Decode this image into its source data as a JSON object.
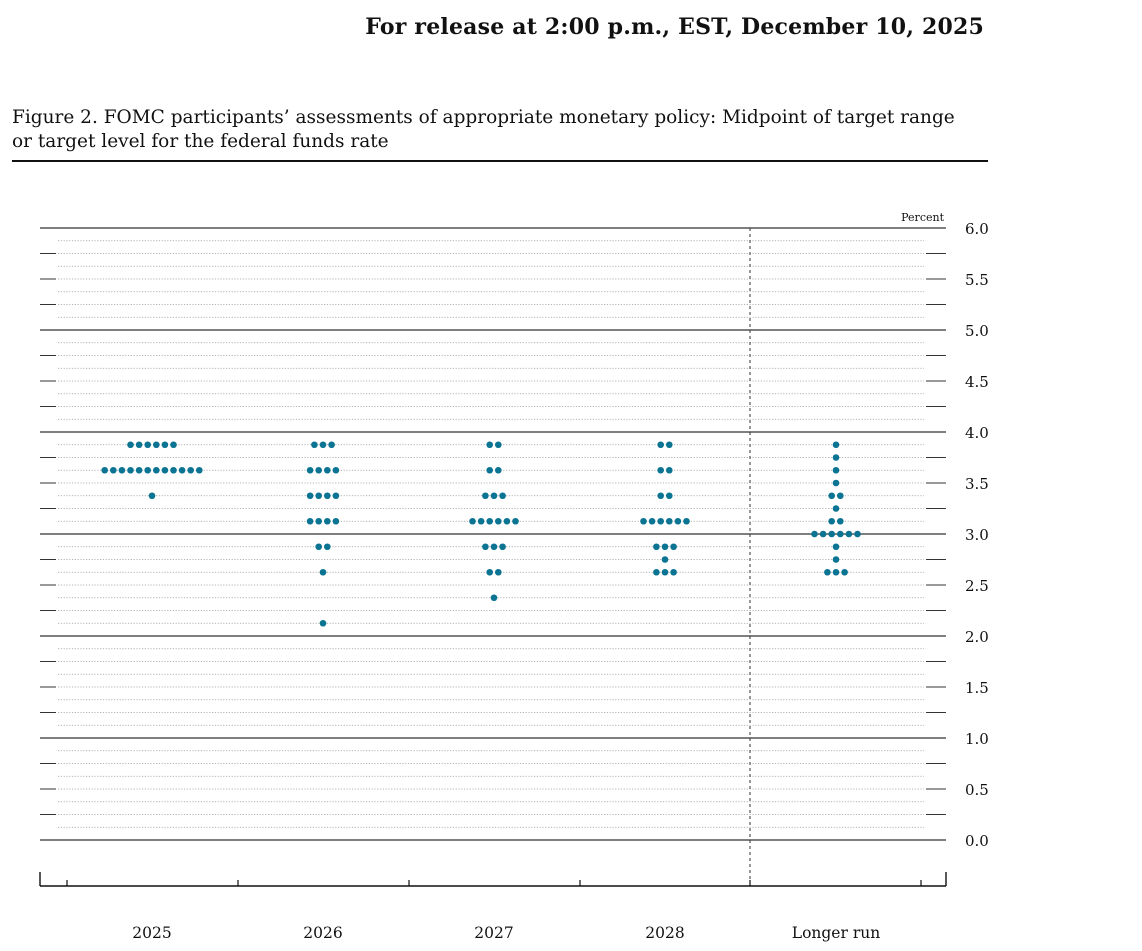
{
  "header": {
    "release_text": "For release at 2:00 p.m., EST, December 10, 2025"
  },
  "figure": {
    "title_line1": "Figure 2. FOMC participants’ assessments of appropriate monetary policy: Midpoint of target range",
    "title_line2": "or target level for the federal funds rate"
  },
  "colors": {
    "dot": "#0a7492",
    "axis": "#111111"
  },
  "chart_data": {
    "type": "scatter",
    "subtype": "dot-plot",
    "title": "",
    "xlabel": "",
    "ylabel": "Percent",
    "ylim": [
      0.0,
      6.0
    ],
    "yticks": [
      "6.0",
      "5.5",
      "5.0",
      "4.5",
      "4.0",
      "3.5",
      "3.0",
      "2.5",
      "2.0",
      "1.5",
      "1.0",
      "0.5",
      "0.0"
    ],
    "grid": true,
    "categories": [
      "2025",
      "2026",
      "2027",
      "2028",
      "Longer run"
    ],
    "dots": [
      {
        "category": "2025",
        "points": [
          {
            "rate": 3.875,
            "count": 6
          },
          {
            "rate": 3.625,
            "count": 12
          },
          {
            "rate": 3.375,
            "count": 1
          }
        ]
      },
      {
        "category": "2026",
        "points": [
          {
            "rate": 3.875,
            "count": 3
          },
          {
            "rate": 3.625,
            "count": 4
          },
          {
            "rate": 3.375,
            "count": 4
          },
          {
            "rate": 3.125,
            "count": 4
          },
          {
            "rate": 2.875,
            "count": 2
          },
          {
            "rate": 2.625,
            "count": 1
          },
          {
            "rate": 2.125,
            "count": 1
          }
        ]
      },
      {
        "category": "2027",
        "points": [
          {
            "rate": 3.875,
            "count": 2
          },
          {
            "rate": 3.625,
            "count": 2
          },
          {
            "rate": 3.375,
            "count": 3
          },
          {
            "rate": 3.125,
            "count": 6
          },
          {
            "rate": 2.875,
            "count": 3
          },
          {
            "rate": 2.625,
            "count": 2
          },
          {
            "rate": 2.375,
            "count": 1
          }
        ]
      },
      {
        "category": "2028",
        "points": [
          {
            "rate": 3.875,
            "count": 2
          },
          {
            "rate": 3.625,
            "count": 2
          },
          {
            "rate": 3.375,
            "count": 2
          },
          {
            "rate": 3.125,
            "count": 6
          },
          {
            "rate": 2.875,
            "count": 3
          },
          {
            "rate": 2.75,
            "count": 1
          },
          {
            "rate": 2.625,
            "count": 3
          }
        ]
      },
      {
        "category": "Longer run",
        "points": [
          {
            "rate": 3.875,
            "count": 1
          },
          {
            "rate": 3.75,
            "count": 1
          },
          {
            "rate": 3.625,
            "count": 1
          },
          {
            "rate": 3.5,
            "count": 1
          },
          {
            "rate": 3.375,
            "count": 2
          },
          {
            "rate": 3.25,
            "count": 1
          },
          {
            "rate": 3.125,
            "count": 2
          },
          {
            "rate": 3.0,
            "count": 6
          },
          {
            "rate": 2.875,
            "count": 1
          },
          {
            "rate": 2.75,
            "count": 1
          },
          {
            "rate": 2.625,
            "count": 3
          }
        ]
      }
    ]
  }
}
